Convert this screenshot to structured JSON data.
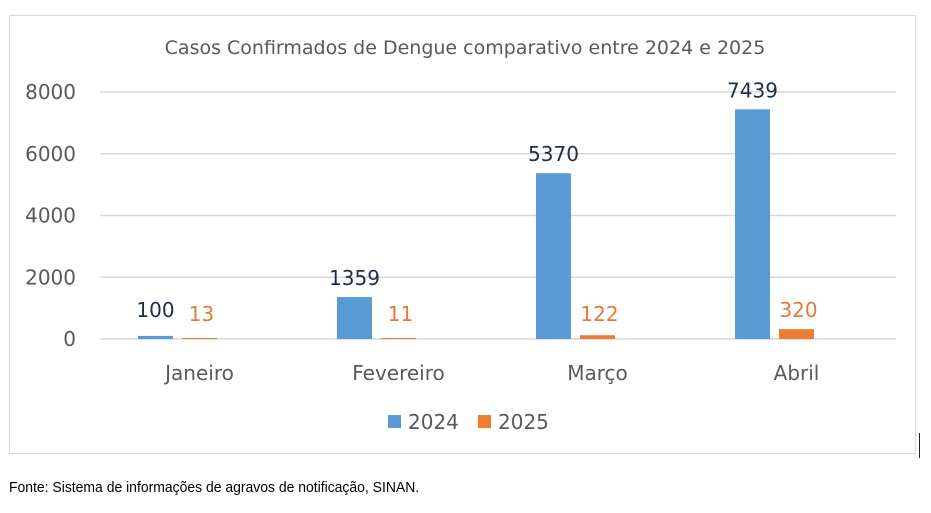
{
  "chart_data": {
    "type": "bar",
    "title": "Casos Confirmados de Dengue comparativo entre 2024 e 2025",
    "categories": [
      "Janeiro",
      "Fevereiro",
      "Março",
      "Abril"
    ],
    "series": [
      {
        "name": "2024",
        "values": [
          100,
          1359,
          5370,
          7439
        ],
        "color": "#5B9BD5",
        "label_color": "#1F2D4A"
      },
      {
        "name": "2025",
        "values": [
          13,
          11,
          122,
          320
        ],
        "color": "#ED7D31",
        "label_color": "#E07B39"
      }
    ],
    "ylim": [
      0,
      8000
    ],
    "yticks": [
      "0",
      "2000",
      "4000",
      "6000",
      "8000"
    ],
    "grid": true,
    "legend": "bottom",
    "xlabel": "",
    "ylabel": ""
  },
  "source": "Fonte: Sistema de informações de agravos de notificação, SINAN."
}
